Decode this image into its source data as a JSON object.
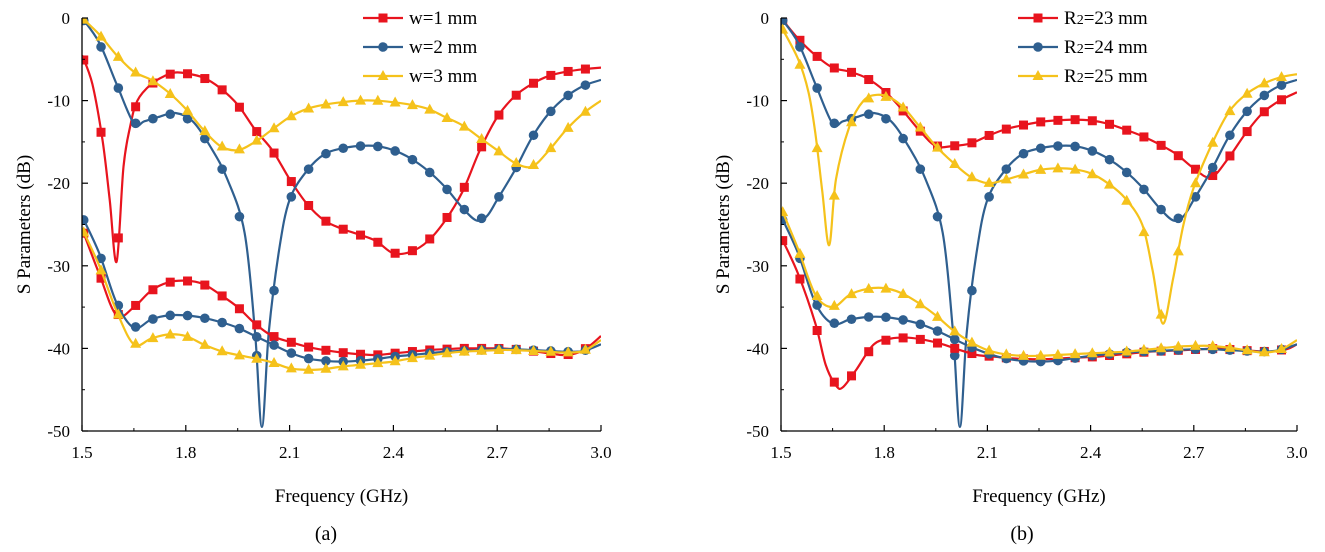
{
  "figure": {
    "panel_labels": [
      "(a)",
      "(b)"
    ]
  },
  "chart_data": [
    {
      "type": "line",
      "panel": "(a)",
      "xlabel": "Frequency (GHz)",
      "ylabel": "S Parameters (dB)",
      "xlim": [
        1.5,
        3.0
      ],
      "ylim": [
        -50,
        0
      ],
      "xticks": [
        1.5,
        1.8,
        2.1,
        2.4,
        2.7,
        3.0
      ],
      "xtick_labels": [
        "1.5",
        "1.8",
        "2.1",
        "2.4",
        "2.7",
        "3.0"
      ],
      "yticks": [
        0,
        -10,
        -20,
        -30,
        -40,
        -50
      ],
      "ytick_labels": [
        "0",
        "-10",
        "-20",
        "-30",
        "-40",
        "-50"
      ],
      "grid": false,
      "legend_position": "top-right",
      "series": [
        {
          "name": "w=1 mm",
          "marker": "square",
          "color": "#e8141e",
          "group": "S11",
          "x": [
            1.5,
            1.53,
            1.56,
            1.58,
            1.6,
            1.62,
            1.64,
            1.66,
            1.7,
            1.74,
            1.77,
            1.8,
            1.85,
            1.9,
            1.95,
            2.0,
            2.05,
            2.1,
            2.15,
            2.2,
            2.25,
            2.3,
            2.35,
            2.4,
            2.45,
            2.5,
            2.55,
            2.6,
            2.65,
            2.7,
            2.75,
            2.8,
            2.85,
            2.9,
            2.95,
            3.0
          ],
          "y": [
            -4.5,
            -8,
            -15,
            -22,
            -29.5,
            -18,
            -13,
            -10,
            -8,
            -7,
            -6.6,
            -6.7,
            -7.2,
            -8.5,
            -10.5,
            -13.5,
            -16,
            -19.5,
            -22.5,
            -24.5,
            -25.5,
            -26.2,
            -27,
            -28.5,
            -28.3,
            -27,
            -24.5,
            -21,
            -16,
            -12,
            -9.5,
            -8,
            -7,
            -6.5,
            -6.2,
            -6
          ]
        },
        {
          "name": "w=2 mm",
          "marker": "circle",
          "color": "#2f5f8f",
          "group": "S11",
          "x": [
            1.5,
            1.55,
            1.6,
            1.65,
            1.68,
            1.72,
            1.77,
            1.82,
            1.87,
            1.92,
            1.97,
            2.0,
            2.02,
            2.04,
            2.07,
            2.1,
            2.15,
            2.2,
            2.25,
            2.3,
            2.35,
            2.4,
            2.45,
            2.5,
            2.55,
            2.6,
            2.64,
            2.67,
            2.7,
            2.75,
            2.8,
            2.85,
            2.9,
            2.95,
            3.0
          ],
          "y": [
            0,
            -3,
            -8,
            -12.8,
            -12.5,
            -12,
            -11.5,
            -12.5,
            -15.5,
            -19.5,
            -26,
            -38,
            -49.5,
            -38,
            -28,
            -22,
            -18.5,
            -16.5,
            -15.8,
            -15.5,
            -15.5,
            -16,
            -17,
            -18.5,
            -20.5,
            -23,
            -24.5,
            -24,
            -22,
            -18.5,
            -14.5,
            -11.5,
            -9.5,
            -8.2,
            -7.5
          ]
        },
        {
          "name": "w=3 mm",
          "marker": "triangle",
          "color": "#f5c21b",
          "group": "S11",
          "x": [
            1.5,
            1.55,
            1.6,
            1.65,
            1.7,
            1.75,
            1.8,
            1.85,
            1.9,
            1.95,
            2.0,
            2.05,
            2.1,
            2.15,
            2.2,
            2.25,
            2.3,
            2.35,
            2.4,
            2.45,
            2.5,
            2.55,
            2.6,
            2.65,
            2.7,
            2.75,
            2.8,
            2.85,
            2.9,
            2.95,
            3.0
          ],
          "y": [
            0,
            -2,
            -4.5,
            -6.5,
            -7.5,
            -9,
            -11,
            -13.5,
            -15.5,
            -16,
            -15,
            -13.5,
            -12,
            -11,
            -10.5,
            -10.2,
            -10,
            -10,
            -10.2,
            -10.5,
            -11,
            -12,
            -13,
            -14.5,
            -16,
            -17.5,
            -18,
            -16,
            -13.5,
            -11.5,
            -10
          ]
        },
        {
          "name": "w=1 mm",
          "marker": "square",
          "color": "#e8141e",
          "group": "S21",
          "x": [
            1.5,
            1.55,
            1.6,
            1.65,
            1.7,
            1.75,
            1.8,
            1.85,
            1.9,
            1.95,
            2.0,
            2.05,
            2.1,
            2.15,
            2.2,
            2.25,
            2.3,
            2.35,
            2.4,
            2.45,
            2.5,
            2.55,
            2.6,
            2.65,
            2.7,
            2.75,
            2.8,
            2.85,
            2.9,
            2.95,
            3.0
          ],
          "y": [
            -25.5,
            -31,
            -36,
            -35,
            -33,
            -32,
            -31.8,
            -32.2,
            -33.5,
            -35,
            -37,
            -38.5,
            -39.2,
            -39.8,
            -40.2,
            -40.5,
            -40.7,
            -40.8,
            -40.6,
            -40.4,
            -40.2,
            -40.1,
            -40,
            -40,
            -40,
            -40.1,
            -40.3,
            -40.6,
            -40.8,
            -40.2,
            -38.5
          ]
        },
        {
          "name": "w=2 mm",
          "marker": "circle",
          "color": "#2f5f8f",
          "group": "S21",
          "x": [
            1.5,
            1.55,
            1.6,
            1.65,
            1.7,
            1.75,
            1.8,
            1.85,
            1.9,
            1.95,
            2.0,
            2.05,
            2.1,
            2.15,
            2.2,
            2.25,
            2.3,
            2.35,
            2.4,
            2.45,
            2.5,
            2.55,
            2.6,
            2.65,
            2.7,
            2.75,
            2.8,
            2.85,
            2.9,
            2.95,
            3.0
          ],
          "y": [
            -24,
            -28.5,
            -34.5,
            -37.5,
            -36.5,
            -36,
            -36,
            -36.3,
            -36.8,
            -37.5,
            -38.5,
            -39.5,
            -40.5,
            -41.2,
            -41.5,
            -41.6,
            -41.5,
            -41.3,
            -41,
            -40.8,
            -40.6,
            -40.4,
            -40.3,
            -40.2,
            -40.1,
            -40.1,
            -40.2,
            -40.3,
            -40.4,
            -40.3,
            -39.5
          ]
        },
        {
          "name": "w=3 mm",
          "marker": "triangle",
          "color": "#f5c21b",
          "group": "S21",
          "x": [
            1.5,
            1.55,
            1.6,
            1.65,
            1.7,
            1.75,
            1.8,
            1.85,
            1.9,
            1.95,
            2.0,
            2.05,
            2.1,
            2.15,
            2.2,
            2.25,
            2.3,
            2.35,
            2.4,
            2.45,
            2.5,
            2.55,
            2.6,
            2.65,
            2.7,
            2.75,
            2.8,
            2.85,
            2.9,
            2.95,
            3.0
          ],
          "y": [
            -25.5,
            -30,
            -35.5,
            -39.5,
            -38.8,
            -38.3,
            -38.5,
            -39.5,
            -40.3,
            -40.8,
            -41.2,
            -41.7,
            -42.4,
            -42.6,
            -42.5,
            -42.2,
            -42,
            -41.8,
            -41.6,
            -41.2,
            -40.9,
            -40.6,
            -40.4,
            -40.3,
            -40.2,
            -40.2,
            -40.3,
            -40.4,
            -40.5,
            -40.3,
            -39
          ]
        }
      ]
    },
    {
      "type": "line",
      "panel": "(b)",
      "xlabel": "Frequency (GHz)",
      "ylabel": "S Parameters (dB)",
      "xlim": [
        1.5,
        3.0
      ],
      "ylim": [
        -50,
        0
      ],
      "xticks": [
        1.5,
        1.8,
        2.1,
        2.4,
        2.7,
        3.0
      ],
      "xtick_labels": [
        "1.5",
        "1.8",
        "2.1",
        "2.4",
        "2.7",
        "3.0"
      ],
      "yticks": [
        0,
        -10,
        -20,
        -30,
        -40,
        -50
      ],
      "ytick_labels": [
        "0",
        "-10",
        "-20",
        "-30",
        "-40",
        "-50"
      ],
      "grid": false,
      "legend_position": "top-right",
      "series": [
        {
          "name": "R2=23 mm",
          "name_parts": [
            "R",
            "2",
            "=23 mm"
          ],
          "marker": "square",
          "color": "#e8141e",
          "group": "S11",
          "x": [
            1.5,
            1.55,
            1.6,
            1.65,
            1.7,
            1.75,
            1.8,
            1.85,
            1.9,
            1.95,
            2.0,
            2.05,
            2.1,
            2.15,
            2.2,
            2.25,
            2.3,
            2.35,
            2.4,
            2.45,
            2.5,
            2.55,
            2.6,
            2.65,
            2.7,
            2.75,
            2.8,
            2.85,
            2.9,
            2.95,
            3.0
          ],
          "y": [
            0,
            -2.5,
            -4.5,
            -6,
            -6.5,
            -7.3,
            -8.8,
            -11,
            -13.5,
            -15.5,
            -15.5,
            -15.2,
            -14.3,
            -13.5,
            -13,
            -12.6,
            -12.4,
            -12.3,
            -12.4,
            -12.8,
            -13.5,
            -14.3,
            -15.3,
            -16.5,
            -18.2,
            -19.3,
            -17,
            -14,
            -11.5,
            -10,
            -9
          ]
        },
        {
          "name": "R2=24 mm",
          "name_parts": [
            "R",
            "2",
            "=24 mm"
          ],
          "marker": "circle",
          "color": "#2f5f8f",
          "group": "S11",
          "x": [
            1.5,
            1.55,
            1.6,
            1.65,
            1.68,
            1.72,
            1.77,
            1.82,
            1.87,
            1.92,
            1.97,
            2.0,
            2.02,
            2.04,
            2.07,
            2.1,
            2.15,
            2.2,
            2.25,
            2.3,
            2.35,
            2.4,
            2.45,
            2.5,
            2.55,
            2.6,
            2.64,
            2.67,
            2.7,
            2.75,
            2.8,
            2.85,
            2.9,
            2.95,
            3.0
          ],
          "y": [
            0,
            -3,
            -8,
            -12.8,
            -12.5,
            -12,
            -11.5,
            -12.5,
            -15.5,
            -19.5,
            -26,
            -38,
            -49.5,
            -38,
            -28,
            -22,
            -18.5,
            -16.5,
            -15.8,
            -15.5,
            -15.5,
            -16,
            -17,
            -18.5,
            -20.5,
            -23,
            -24.5,
            -24,
            -22,
            -18.5,
            -14.5,
            -11.5,
            -9.5,
            -8.2,
            -7.5
          ]
        },
        {
          "name": "R2=25 mm",
          "name_parts": [
            "R",
            "2",
            "=25 mm"
          ],
          "marker": "triangle",
          "color": "#f5c21b",
          "group": "S11",
          "x": [
            1.5,
            1.55,
            1.58,
            1.6,
            1.62,
            1.64,
            1.66,
            1.7,
            1.74,
            1.78,
            1.82,
            1.86,
            1.9,
            1.95,
            2.0,
            2.05,
            2.1,
            2.15,
            2.2,
            2.25,
            2.3,
            2.35,
            2.4,
            2.45,
            2.5,
            2.55,
            2.58,
            2.61,
            2.64,
            2.67,
            2.7,
            2.75,
            2.8,
            2.85,
            2.9,
            2.95,
            3.0
          ],
          "y": [
            -1,
            -5,
            -9,
            -14,
            -21,
            -27.5,
            -19.5,
            -13,
            -10,
            -9.3,
            -9.7,
            -11,
            -13,
            -15.5,
            -17.5,
            -19.2,
            -20,
            -19.6,
            -19,
            -18.4,
            -18.2,
            -18.3,
            -18.8,
            -20,
            -21.8,
            -25,
            -30.5,
            -37,
            -31.5,
            -25,
            -20.5,
            -15.5,
            -11.5,
            -9.3,
            -8,
            -7.2,
            -6.8
          ]
        },
        {
          "name": "R2=23 mm",
          "name_parts": [
            "R",
            "2",
            "=23 mm"
          ],
          "marker": "square",
          "color": "#e8141e",
          "group": "S21",
          "x": [
            1.5,
            1.55,
            1.6,
            1.63,
            1.66,
            1.68,
            1.72,
            1.77,
            1.82,
            1.87,
            1.92,
            1.97,
            2.02,
            2.07,
            2.12,
            2.17,
            2.22,
            2.27,
            2.32,
            2.37,
            2.42,
            2.47,
            2.52,
            2.57,
            2.62,
            2.67,
            2.72,
            2.77,
            2.82,
            2.87,
            2.92,
            2.97,
            3.0
          ],
          "y": [
            -26.5,
            -31,
            -37,
            -42,
            -44.5,
            -44.7,
            -42.5,
            -39.5,
            -38.8,
            -38.7,
            -39,
            -39.5,
            -40.2,
            -40.8,
            -41,
            -41.2,
            -41.3,
            -41.3,
            -41.2,
            -41.1,
            -41,
            -40.8,
            -40.6,
            -40.4,
            -40.3,
            -40.2,
            -40.1,
            -40,
            -40.2,
            -40.3,
            -40.4,
            -40.1,
            -39.5
          ]
        },
        {
          "name": "R2=24 mm",
          "name_parts": [
            "R",
            "2",
            "=24 mm"
          ],
          "marker": "circle",
          "color": "#2f5f8f",
          "group": "S21",
          "x": [
            1.5,
            1.55,
            1.6,
            1.65,
            1.7,
            1.75,
            1.8,
            1.85,
            1.9,
            1.95,
            2.0,
            2.05,
            2.1,
            2.15,
            2.2,
            2.25,
            2.3,
            2.35,
            2.4,
            2.45,
            2.5,
            2.55,
            2.6,
            2.65,
            2.7,
            2.75,
            2.8,
            2.85,
            2.9,
            2.95,
            3.0
          ],
          "y": [
            -24,
            -28.5,
            -34.5,
            -37,
            -36.5,
            -36.2,
            -36.2,
            -36.5,
            -37,
            -37.8,
            -38.8,
            -39.8,
            -40.6,
            -41.2,
            -41.5,
            -41.6,
            -41.5,
            -41.2,
            -40.9,
            -40.7,
            -40.5,
            -40.4,
            -40.3,
            -40.2,
            -40.1,
            -40.1,
            -40.2,
            -40.3,
            -40.4,
            -40.2,
            -39.5
          ]
        },
        {
          "name": "R2=25 mm",
          "name_parts": [
            "R",
            "2",
            "=25 mm"
          ],
          "marker": "triangle",
          "color": "#f5c21b",
          "group": "S21",
          "x": [
            1.5,
            1.55,
            1.6,
            1.65,
            1.7,
            1.75,
            1.8,
            1.85,
            1.9,
            1.95,
            2.0,
            2.05,
            2.1,
            2.15,
            2.2,
            2.25,
            2.3,
            2.35,
            2.4,
            2.45,
            2.5,
            2.55,
            2.6,
            2.65,
            2.7,
            2.75,
            2.8,
            2.85,
            2.9,
            2.95,
            3.0
          ],
          "y": [
            -23,
            -28,
            -33.5,
            -35,
            -33.5,
            -32.8,
            -32.7,
            -33.3,
            -34.5,
            -36,
            -37.8,
            -39.2,
            -40.2,
            -40.7,
            -40.9,
            -40.9,
            -40.8,
            -40.7,
            -40.6,
            -40.5,
            -40.4,
            -40.2,
            -40,
            -39.8,
            -39.7,
            -39.7,
            -39.9,
            -40.2,
            -40.5,
            -40.2,
            -39
          ]
        }
      ]
    }
  ]
}
